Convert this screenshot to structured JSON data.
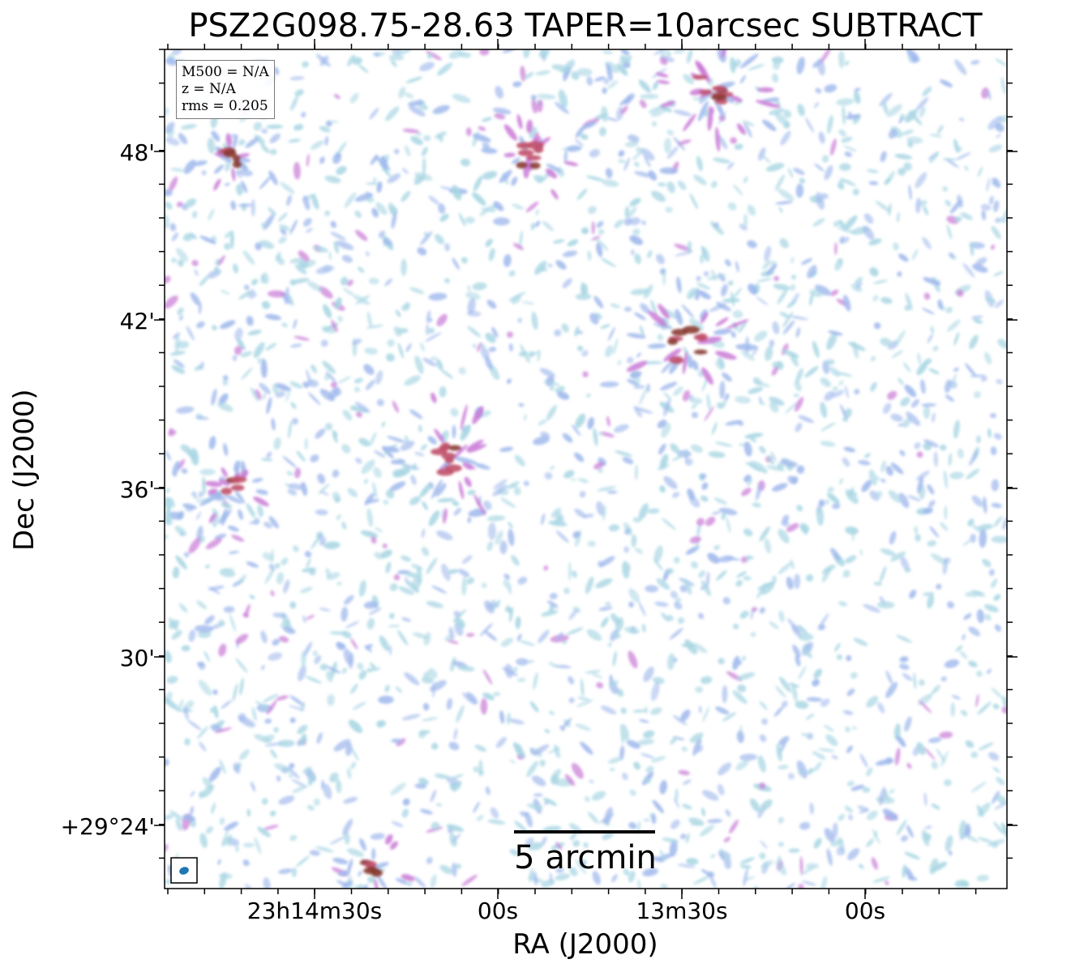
{
  "title": "PSZ2G098.75-28.63 TAPER=10arcsec SUBTRACT",
  "axes": {
    "xlabel": "RA (J2000)",
    "ylabel": "Dec (J2000)",
    "xticks": [
      "23h14m30s",
      "00s",
      "13m30s",
      "00s"
    ],
    "yticks": [
      "48'",
      "42'",
      "36'",
      "30'",
      "+29°24'"
    ]
  },
  "info": {
    "line1": "M500 = N/A",
    "line2": "z = N/A",
    "line3": "rms = 0.205"
  },
  "scalebar": {
    "label": "5 arcmin"
  },
  "colors": {
    "noise_light": "#a9d6e3",
    "noise_blue": "#9fb8ec",
    "emission_purple": "#c979d6",
    "emission_red": "#c0506a",
    "emission_peak": "#8a3a30",
    "beam": "#1f77b4"
  }
}
